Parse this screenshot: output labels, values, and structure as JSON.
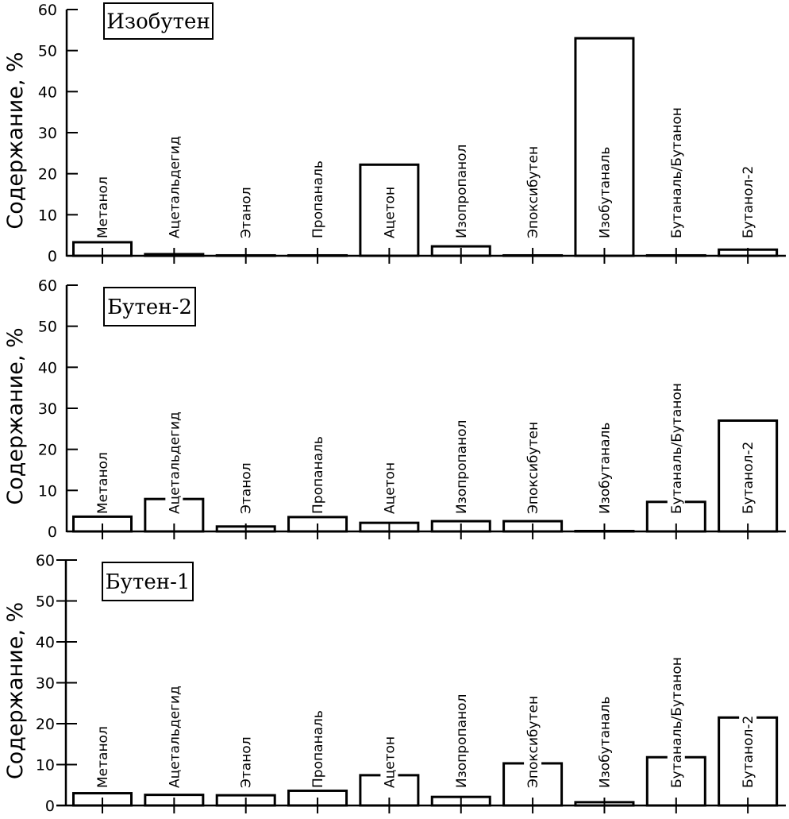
{
  "chart_data": [
    {
      "type": "bar",
      "title": "Изобутен",
      "xlabel": "",
      "ylabel": "Содержание, %",
      "ylim": [
        0,
        60
      ],
      "yticks": [
        0,
        10,
        20,
        30,
        40,
        50,
        60
      ],
      "grid": false,
      "categories": [
        "Метанол",
        "Ацетальдегид",
        "Этанол",
        "Пропаналь",
        "Ацетон",
        "Изопропанол",
        "Эпоксибутен",
        "Изобутаналь",
        "Бутаналь/Бутанон",
        "Бутанол-2"
      ],
      "values": [
        3.3,
        0.4,
        0.1,
        0.1,
        22.2,
        2.3,
        0.1,
        53.0,
        0.1,
        1.5
      ]
    },
    {
      "type": "bar",
      "title": "Бутен-2",
      "xlabel": "",
      "ylabel": "Содержание, %",
      "ylim": [
        0,
        60
      ],
      "yticks": [
        0,
        10,
        20,
        30,
        40,
        50,
        60
      ],
      "grid": false,
      "categories": [
        "Метанол",
        "Ацетальдегид",
        "Этанол",
        "Пропаналь",
        "Ацетон",
        "Изопропанол",
        "Эпоксибутен",
        "Изобутаналь",
        "Бутаналь/Бутанон",
        "Бутанол-2"
      ],
      "values": [
        3.6,
        7.9,
        1.2,
        3.5,
        2.1,
        2.5,
        2.5,
        0.1,
        7.2,
        27.0
      ]
    },
    {
      "type": "bar",
      "title": "Бутен-1",
      "xlabel": "",
      "ylabel": "Содержание, %",
      "ylim": [
        0,
        60
      ],
      "yticks": [
        0,
        10,
        20,
        30,
        40,
        50,
        60
      ],
      "grid": false,
      "categories": [
        "Метанол",
        "Ацетальдегид",
        "Этанол",
        "Пропаналь",
        "Ацетон",
        "Изопропанол",
        "Эпоксибутен",
        "Изобутаналь",
        "Бутаналь/Бутанон",
        "Бутанол-2"
      ],
      "values": [
        3.0,
        2.6,
        2.5,
        3.6,
        7.4,
        2.1,
        10.3,
        0.8,
        11.8,
        21.5
      ]
    }
  ]
}
